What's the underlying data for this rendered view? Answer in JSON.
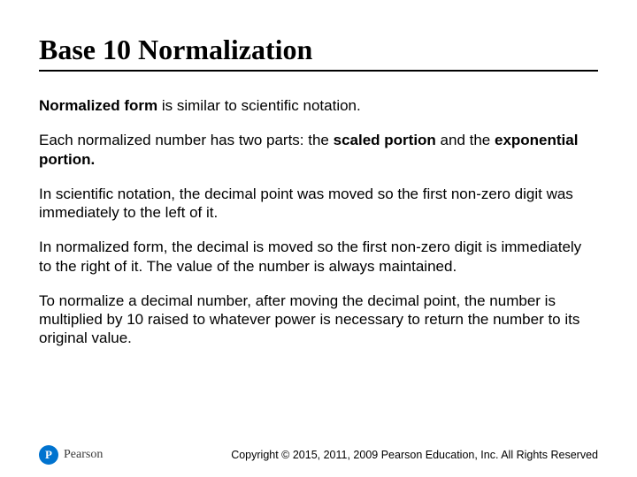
{
  "title": "Base 10 Normalization",
  "paragraphs": {
    "p1_bold": "Normalized form",
    "p1_rest": " is similar to scientific notation.",
    "p2_a": "Each normalized number has two parts: the ",
    "p2_b_bold": "scaled portion",
    "p2_c": "  and the ",
    "p2_d_bold": "exponential portion.",
    "p3": "In scientific notation, the decimal point was moved so the first non-zero digit was immediately to the left of it.",
    "p4": "In normalized form, the decimal is moved so the first non-zero digit is immediately to the right of it. The value of the number is always maintained.",
    "p5": "To normalize a decimal number, after moving the decimal point, the number is multiplied by 10 raised to whatever power is necessary to return the number to its original value."
  },
  "logo": {
    "mark": "P",
    "name": "Pearson"
  },
  "copyright": "Copyright © 2015, 2011, 2009 Pearson Education, Inc. All Rights Reserved",
  "colors": {
    "brand": "#0073cf",
    "text": "#000000",
    "bg": "#ffffff"
  },
  "typography": {
    "title_fontsize": 32,
    "body_fontsize": 17,
    "copyright_fontsize": 12.5
  }
}
